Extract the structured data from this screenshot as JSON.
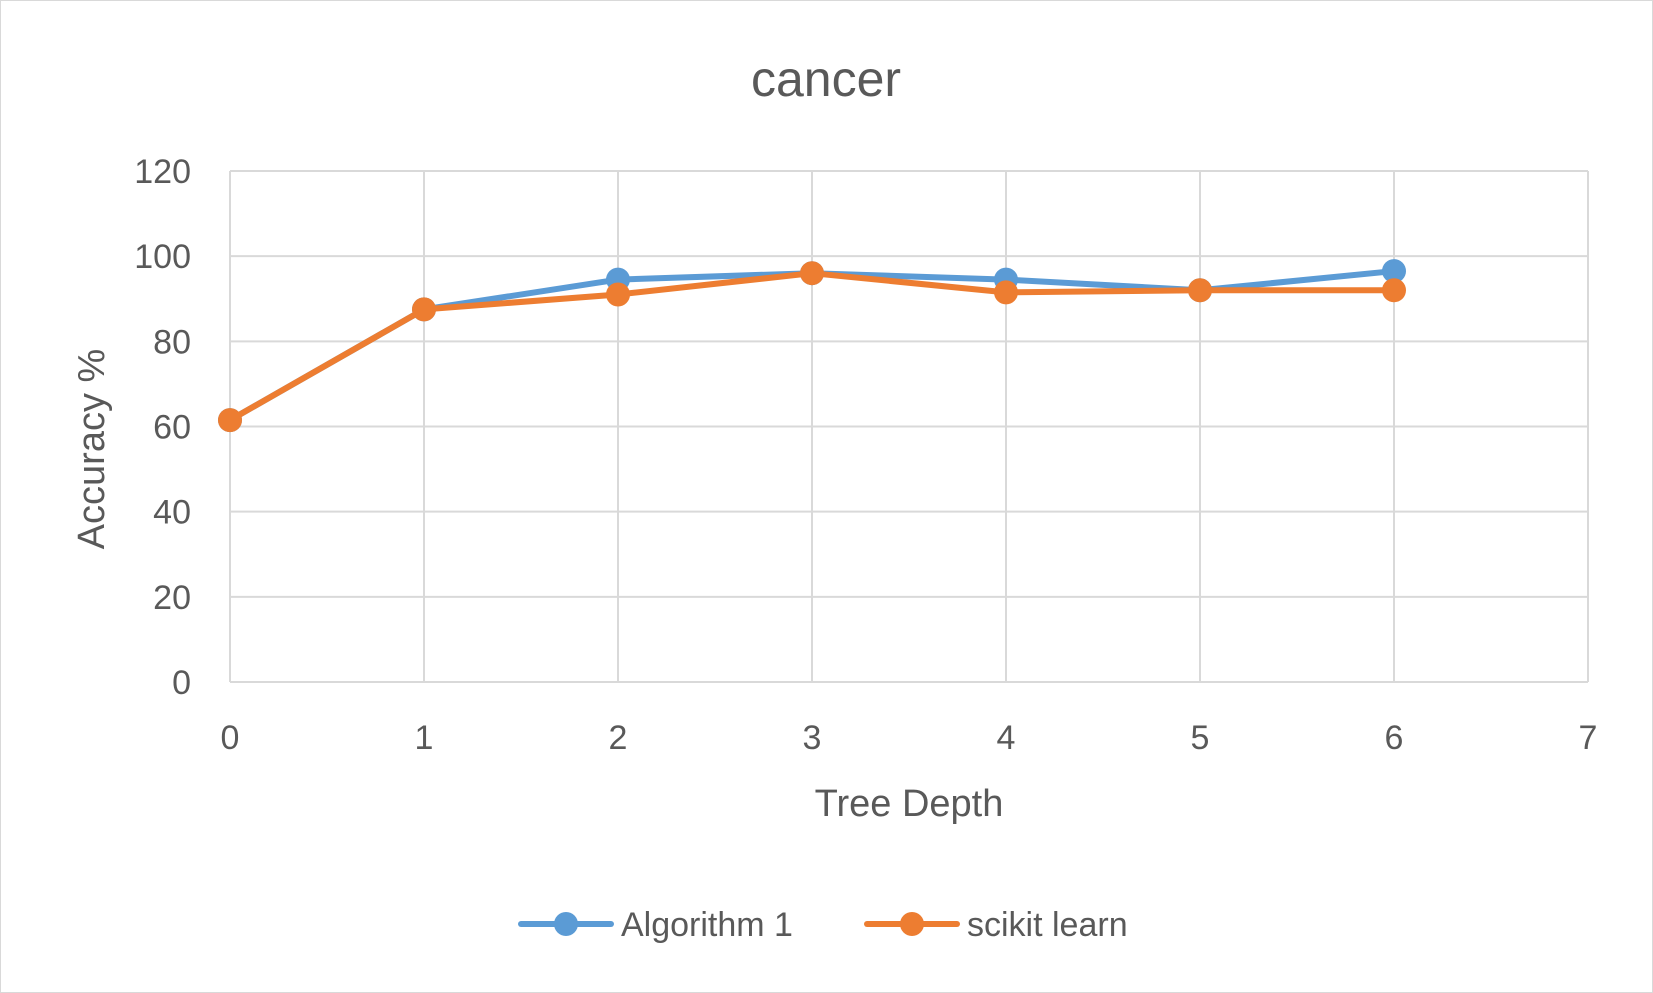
{
  "chart_data": {
    "type": "line",
    "title": "cancer",
    "xlabel": "Tree Depth",
    "ylabel": "Accuracy %",
    "xlim": [
      0,
      7
    ],
    "ylim": [
      0,
      120
    ],
    "x_ticks": [
      "0",
      "1",
      "2",
      "3",
      "4",
      "5",
      "6",
      "7"
    ],
    "y_ticks": [
      "0",
      "20",
      "40",
      "60",
      "80",
      "100",
      "120"
    ],
    "grid": true,
    "legend_position": "bottom",
    "series": [
      {
        "name": "Algorithm 1",
        "color": "#5b9bd5",
        "x": [
          0,
          1,
          2,
          3,
          4,
          5,
          6
        ],
        "values": [
          61.5,
          87.5,
          94.5,
          96.0,
          94.5,
          92.0,
          96.5
        ]
      },
      {
        "name": "scikit learn",
        "color": "#ed7d31",
        "x": [
          0,
          1,
          2,
          3,
          4,
          5,
          6
        ],
        "values": [
          61.5,
          87.5,
          91.0,
          96.0,
          91.5,
          92.0,
          92.0
        ]
      }
    ]
  }
}
